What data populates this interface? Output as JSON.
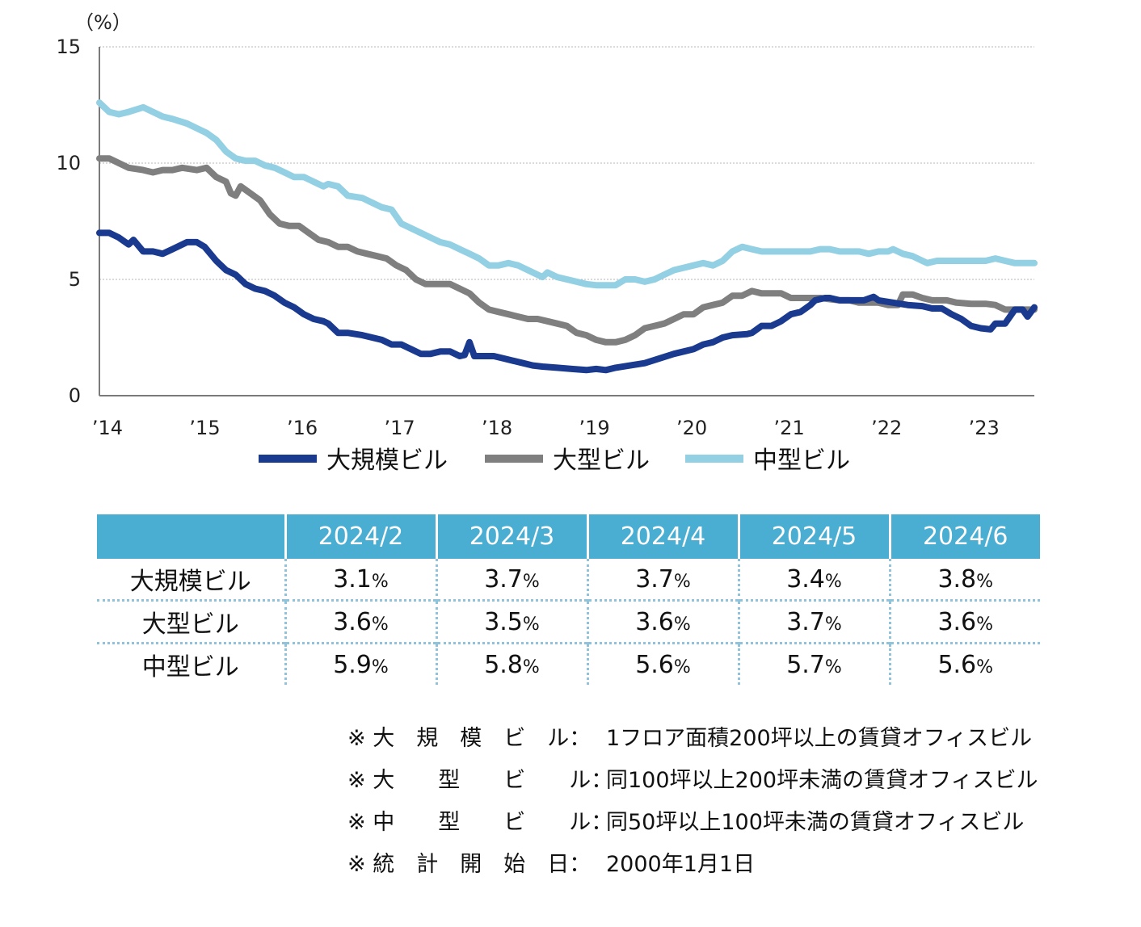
{
  "chart_data": {
    "type": "line",
    "y_unit": "（%）",
    "ylim": [
      0,
      15
    ],
    "yticks": [
      0,
      5,
      10,
      15
    ],
    "xlim": [
      2014.0,
      2023.6
    ],
    "xticks": [
      {
        "x": 2014,
        "label": "’14"
      },
      {
        "x": 2015,
        "label": "’15"
      },
      {
        "x": 2016,
        "label": "’16"
      },
      {
        "x": 2017,
        "label": "’17"
      },
      {
        "x": 2018,
        "label": "’18"
      },
      {
        "x": 2019,
        "label": "’19"
      },
      {
        "x": 2020,
        "label": "’20"
      },
      {
        "x": 2021,
        "label": "’21"
      },
      {
        "x": 2022,
        "label": "’22"
      },
      {
        "x": 2023,
        "label": "’23"
      }
    ],
    "grid": "horizontal dotted",
    "legend_position": "bottom",
    "series": [
      {
        "name": "大規模ビル",
        "color": "#1a3a8f",
        "points": [
          [
            2014.0,
            7.0
          ],
          [
            2014.1,
            7.0
          ],
          [
            2014.2,
            6.8
          ],
          [
            2014.3,
            6.5
          ],
          [
            2014.35,
            6.7
          ],
          [
            2014.45,
            6.2
          ],
          [
            2014.55,
            6.2
          ],
          [
            2014.65,
            6.1
          ],
          [
            2014.75,
            6.3
          ],
          [
            2014.9,
            6.6
          ],
          [
            2015.0,
            6.6
          ],
          [
            2015.08,
            6.4
          ],
          [
            2015.2,
            5.8
          ],
          [
            2015.3,
            5.4
          ],
          [
            2015.4,
            5.2
          ],
          [
            2015.5,
            4.8
          ],
          [
            2015.6,
            4.6
          ],
          [
            2015.7,
            4.5
          ],
          [
            2015.8,
            4.3
          ],
          [
            2015.9,
            4.0
          ],
          [
            2016.0,
            3.8
          ],
          [
            2016.1,
            3.5
          ],
          [
            2016.2,
            3.3
          ],
          [
            2016.3,
            3.2
          ],
          [
            2016.35,
            3.1
          ],
          [
            2016.45,
            2.7
          ],
          [
            2016.55,
            2.7
          ],
          [
            2016.7,
            2.6
          ],
          [
            2016.8,
            2.5
          ],
          [
            2016.9,
            2.4
          ],
          [
            2017.0,
            2.2
          ],
          [
            2017.1,
            2.2
          ],
          [
            2017.2,
            2.0
          ],
          [
            2017.3,
            1.8
          ],
          [
            2017.4,
            1.8
          ],
          [
            2017.5,
            1.9
          ],
          [
            2017.6,
            1.9
          ],
          [
            2017.7,
            1.7
          ],
          [
            2017.75,
            1.75
          ],
          [
            2017.8,
            2.3
          ],
          [
            2017.85,
            1.7
          ],
          [
            2017.95,
            1.7
          ],
          [
            2018.05,
            1.7
          ],
          [
            2018.15,
            1.6
          ],
          [
            2018.25,
            1.5
          ],
          [
            2018.35,
            1.4
          ],
          [
            2018.45,
            1.3
          ],
          [
            2018.55,
            1.25
          ],
          [
            2018.7,
            1.2
          ],
          [
            2018.85,
            1.15
          ],
          [
            2019.0,
            1.1
          ],
          [
            2019.1,
            1.15
          ],
          [
            2019.2,
            1.1
          ],
          [
            2019.3,
            1.2
          ],
          [
            2019.45,
            1.3
          ],
          [
            2019.6,
            1.4
          ],
          [
            2019.75,
            1.6
          ],
          [
            2019.9,
            1.8
          ],
          [
            2020.0,
            1.9
          ],
          [
            2020.1,
            2.0
          ],
          [
            2020.2,
            2.2
          ],
          [
            2020.3,
            2.3
          ],
          [
            2020.4,
            2.5
          ],
          [
            2020.5,
            2.6
          ],
          [
            2020.65,
            2.65
          ],
          [
            2020.7,
            2.7
          ],
          [
            2020.8,
            3.0
          ],
          [
            2020.9,
            3.0
          ],
          [
            2021.0,
            3.2
          ],
          [
            2021.1,
            3.5
          ],
          [
            2021.2,
            3.6
          ],
          [
            2021.3,
            3.9
          ],
          [
            2021.35,
            4.1
          ],
          [
            2021.45,
            4.2
          ],
          [
            2021.5,
            4.2
          ],
          [
            2021.6,
            4.1
          ],
          [
            2021.75,
            4.1
          ],
          [
            2021.85,
            4.1
          ],
          [
            2021.95,
            4.25
          ],
          [
            2022.0,
            4.1
          ],
          [
            2022.15,
            4.0
          ],
          [
            2022.3,
            3.9
          ],
          [
            2022.45,
            3.85
          ],
          [
            2022.55,
            3.75
          ],
          [
            2022.65,
            3.75
          ],
          [
            2022.75,
            3.5
          ],
          [
            2022.85,
            3.3
          ],
          [
            2022.95,
            3.0
          ],
          [
            2023.05,
            2.9
          ],
          [
            2023.15,
            2.85
          ],
          [
            2023.2,
            3.1
          ],
          [
            2023.3,
            3.1
          ],
          [
            2023.4,
            3.7
          ],
          [
            2023.48,
            3.7
          ],
          [
            2023.53,
            3.4
          ],
          [
            2023.6,
            3.8
          ]
        ]
      },
      {
        "name": "大型ビル",
        "color": "#7f7f7f",
        "points": [
          [
            2014.0,
            10.2
          ],
          [
            2014.1,
            10.2
          ],
          [
            2014.2,
            10.0
          ],
          [
            2014.3,
            9.8
          ],
          [
            2014.45,
            9.7
          ],
          [
            2014.55,
            9.6
          ],
          [
            2014.65,
            9.7
          ],
          [
            2014.75,
            9.7
          ],
          [
            2014.85,
            9.8
          ],
          [
            2015.0,
            9.7
          ],
          [
            2015.1,
            9.8
          ],
          [
            2015.2,
            9.4
          ],
          [
            2015.3,
            9.2
          ],
          [
            2015.35,
            8.7
          ],
          [
            2015.4,
            8.6
          ],
          [
            2015.45,
            9.0
          ],
          [
            2015.55,
            8.7
          ],
          [
            2015.65,
            8.4
          ],
          [
            2015.75,
            7.8
          ],
          [
            2015.85,
            7.4
          ],
          [
            2015.95,
            7.3
          ],
          [
            2016.05,
            7.3
          ],
          [
            2016.15,
            7.0
          ],
          [
            2016.25,
            6.7
          ],
          [
            2016.35,
            6.6
          ],
          [
            2016.45,
            6.4
          ],
          [
            2016.55,
            6.4
          ],
          [
            2016.65,
            6.2
          ],
          [
            2016.75,
            6.1
          ],
          [
            2016.85,
            6.0
          ],
          [
            2016.95,
            5.9
          ],
          [
            2017.05,
            5.6
          ],
          [
            2017.15,
            5.4
          ],
          [
            2017.25,
            5.0
          ],
          [
            2017.35,
            4.8
          ],
          [
            2017.5,
            4.8
          ],
          [
            2017.6,
            4.8
          ],
          [
            2017.7,
            4.6
          ],
          [
            2017.8,
            4.4
          ],
          [
            2017.9,
            4.0
          ],
          [
            2018.0,
            3.7
          ],
          [
            2018.1,
            3.6
          ],
          [
            2018.2,
            3.5
          ],
          [
            2018.3,
            3.4
          ],
          [
            2018.4,
            3.3
          ],
          [
            2018.5,
            3.3
          ],
          [
            2018.6,
            3.2
          ],
          [
            2018.7,
            3.1
          ],
          [
            2018.8,
            3.0
          ],
          [
            2018.9,
            2.7
          ],
          [
            2019.0,
            2.6
          ],
          [
            2019.1,
            2.4
          ],
          [
            2019.2,
            2.3
          ],
          [
            2019.3,
            2.3
          ],
          [
            2019.4,
            2.4
          ],
          [
            2019.5,
            2.6
          ],
          [
            2019.6,
            2.9
          ],
          [
            2019.7,
            3.0
          ],
          [
            2019.8,
            3.1
          ],
          [
            2019.9,
            3.3
          ],
          [
            2020.0,
            3.5
          ],
          [
            2020.1,
            3.5
          ],
          [
            2020.2,
            3.8
          ],
          [
            2020.3,
            3.9
          ],
          [
            2020.4,
            4.0
          ],
          [
            2020.5,
            4.3
          ],
          [
            2020.6,
            4.3
          ],
          [
            2020.7,
            4.5
          ],
          [
            2020.8,
            4.4
          ],
          [
            2020.9,
            4.4
          ],
          [
            2021.0,
            4.4
          ],
          [
            2021.1,
            4.2
          ],
          [
            2021.2,
            4.2
          ],
          [
            2021.3,
            4.2
          ],
          [
            2021.4,
            4.2
          ],
          [
            2021.5,
            4.15
          ],
          [
            2021.6,
            4.1
          ],
          [
            2021.7,
            4.1
          ],
          [
            2021.8,
            4.0
          ],
          [
            2021.9,
            4.0
          ],
          [
            2022.0,
            4.0
          ],
          [
            2022.1,
            3.9
          ],
          [
            2022.2,
            3.9
          ],
          [
            2022.25,
            4.35
          ],
          [
            2022.35,
            4.35
          ],
          [
            2022.45,
            4.2
          ],
          [
            2022.55,
            4.1
          ],
          [
            2022.7,
            4.1
          ],
          [
            2022.8,
            4.0
          ],
          [
            2022.95,
            3.95
          ],
          [
            2023.1,
            3.95
          ],
          [
            2023.2,
            3.9
          ],
          [
            2023.3,
            3.7
          ],
          [
            2023.45,
            3.7
          ],
          [
            2023.6,
            3.7
          ]
        ]
      },
      {
        "name": "中型ビル",
        "color": "#94d0e3",
        "points": [
          [
            2014.0,
            12.6
          ],
          [
            2014.1,
            12.2
          ],
          [
            2014.2,
            12.1
          ],
          [
            2014.3,
            12.2
          ],
          [
            2014.45,
            12.4
          ],
          [
            2014.55,
            12.2
          ],
          [
            2014.65,
            12.0
          ],
          [
            2014.75,
            11.9
          ],
          [
            2014.9,
            11.7
          ],
          [
            2015.0,
            11.5
          ],
          [
            2015.1,
            11.3
          ],
          [
            2015.2,
            11.0
          ],
          [
            2015.3,
            10.5
          ],
          [
            2015.4,
            10.2
          ],
          [
            2015.5,
            10.1
          ],
          [
            2015.6,
            10.1
          ],
          [
            2015.7,
            9.9
          ],
          [
            2015.8,
            9.8
          ],
          [
            2015.9,
            9.6
          ],
          [
            2016.0,
            9.4
          ],
          [
            2016.1,
            9.4
          ],
          [
            2016.2,
            9.2
          ],
          [
            2016.3,
            9.0
          ],
          [
            2016.35,
            9.1
          ],
          [
            2016.45,
            9.0
          ],
          [
            2016.55,
            8.6
          ],
          [
            2016.7,
            8.5
          ],
          [
            2016.8,
            8.3
          ],
          [
            2016.9,
            8.1
          ],
          [
            2017.0,
            8.0
          ],
          [
            2017.1,
            7.4
          ],
          [
            2017.2,
            7.2
          ],
          [
            2017.3,
            7.0
          ],
          [
            2017.4,
            6.8
          ],
          [
            2017.5,
            6.6
          ],
          [
            2017.6,
            6.5
          ],
          [
            2017.7,
            6.3
          ],
          [
            2017.8,
            6.1
          ],
          [
            2017.9,
            5.9
          ],
          [
            2018.0,
            5.6
          ],
          [
            2018.1,
            5.6
          ],
          [
            2018.2,
            5.7
          ],
          [
            2018.3,
            5.6
          ],
          [
            2018.4,
            5.4
          ],
          [
            2018.5,
            5.2
          ],
          [
            2018.55,
            5.1
          ],
          [
            2018.6,
            5.3
          ],
          [
            2018.7,
            5.1
          ],
          [
            2018.8,
            5.0
          ],
          [
            2018.9,
            4.9
          ],
          [
            2019.0,
            4.8
          ],
          [
            2019.1,
            4.75
          ],
          [
            2019.2,
            4.75
          ],
          [
            2019.3,
            4.75
          ],
          [
            2019.4,
            5.0
          ],
          [
            2019.5,
            5.0
          ],
          [
            2019.6,
            4.9
          ],
          [
            2019.7,
            5.0
          ],
          [
            2019.8,
            5.2
          ],
          [
            2019.9,
            5.4
          ],
          [
            2020.0,
            5.5
          ],
          [
            2020.1,
            5.6
          ],
          [
            2020.2,
            5.7
          ],
          [
            2020.3,
            5.6
          ],
          [
            2020.4,
            5.8
          ],
          [
            2020.5,
            6.2
          ],
          [
            2020.6,
            6.4
          ],
          [
            2020.7,
            6.3
          ],
          [
            2020.8,
            6.2
          ],
          [
            2020.9,
            6.2
          ],
          [
            2021.0,
            6.2
          ],
          [
            2021.1,
            6.2
          ],
          [
            2021.2,
            6.2
          ],
          [
            2021.3,
            6.2
          ],
          [
            2021.4,
            6.3
          ],
          [
            2021.5,
            6.3
          ],
          [
            2021.6,
            6.2
          ],
          [
            2021.7,
            6.2
          ],
          [
            2021.8,
            6.2
          ],
          [
            2021.9,
            6.1
          ],
          [
            2022.0,
            6.2
          ],
          [
            2022.1,
            6.2
          ],
          [
            2022.15,
            6.3
          ],
          [
            2022.25,
            6.1
          ],
          [
            2022.35,
            6.0
          ],
          [
            2022.45,
            5.8
          ],
          [
            2022.5,
            5.7
          ],
          [
            2022.6,
            5.8
          ],
          [
            2022.7,
            5.8
          ],
          [
            2022.8,
            5.8
          ],
          [
            2022.9,
            5.8
          ],
          [
            2023.0,
            5.8
          ],
          [
            2023.1,
            5.8
          ],
          [
            2023.2,
            5.9
          ],
          [
            2023.3,
            5.8
          ],
          [
            2023.4,
            5.7
          ],
          [
            2023.5,
            5.7
          ],
          [
            2023.6,
            5.7
          ]
        ]
      }
    ]
  },
  "table": {
    "headers": [
      "",
      "2024/2",
      "2024/3",
      "2024/4",
      "2024/5",
      "2024/6"
    ],
    "rows": [
      {
        "label": "大規模ビル",
        "values": [
          "3.1",
          "3.7",
          "3.7",
          "3.4",
          "3.8"
        ]
      },
      {
        "label": "大型ビル",
        "values": [
          "3.6",
          "3.5",
          "3.6",
          "3.7",
          "3.6"
        ]
      },
      {
        "label": "中型ビル",
        "values": [
          "5.9",
          "5.8",
          "5.6",
          "5.7",
          "5.6"
        ]
      }
    ],
    "unit": "%"
  },
  "notes": [
    {
      "key": "※ 大　規　模　ビ　ル：",
      "text": "1フロア面積200坪以上の賃貸オフィスビル"
    },
    {
      "key": "※ 大　　型　　ビ　　ル：",
      "text": "同100坪以上200坪未満の賃貸オフィスビル"
    },
    {
      "key": "※ 中　　型　　ビ　　ル：",
      "text": "同50坪以上100坪未満の賃貸オフィスビル"
    },
    {
      "key": "※ 統　計　開　始　日：",
      "text": "2000年1月1日"
    }
  ]
}
